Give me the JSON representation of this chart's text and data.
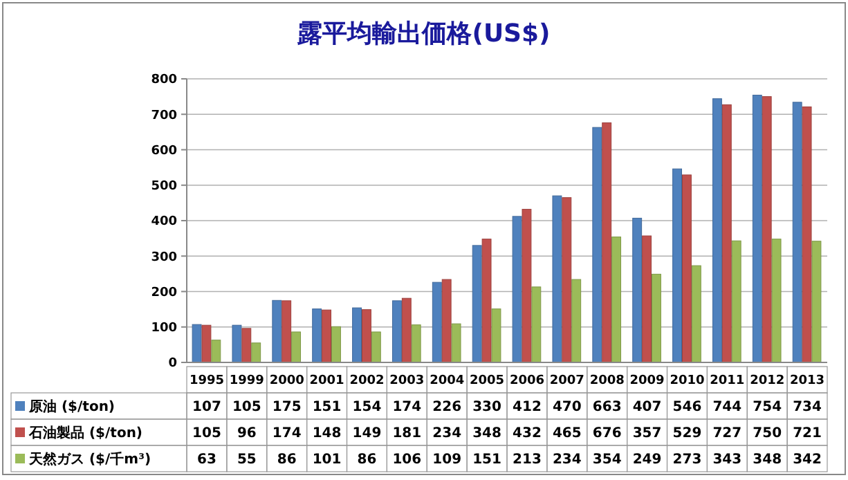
{
  "chart_data": {
    "type": "bar",
    "title": "露平均輸出価格(US$)",
    "categories": [
      "1995",
      "1999",
      "2000",
      "2001",
      "2002",
      "2003",
      "2004",
      "2005",
      "2006",
      "2007",
      "2008",
      "2009",
      "2010",
      "2011",
      "2012",
      "2013"
    ],
    "series": [
      {
        "name": "原油 ($/ton)",
        "color": "#4f81bd",
        "values": [
          107,
          105,
          175,
          151,
          154,
          174,
          226,
          330,
          412,
          470,
          663,
          407,
          546,
          744,
          754,
          734
        ]
      },
      {
        "name": "石油製品 ($/ton)",
        "color": "#c0504d",
        "values": [
          105,
          96,
          174,
          148,
          149,
          181,
          234,
          348,
          432,
          465,
          676,
          357,
          529,
          727,
          750,
          721
        ]
      },
      {
        "name": "天然ガス ($/千m³)",
        "color": "#9bbb59",
        "values": [
          63,
          55,
          86,
          101,
          86,
          106,
          109,
          151,
          213,
          234,
          354,
          249,
          273,
          343,
          348,
          342
        ]
      }
    ],
    "ylim": [
      0,
      800
    ],
    "yticks": [
      0,
      100,
      200,
      300,
      400,
      500,
      600,
      700,
      800
    ],
    "grid": "y",
    "legend": "bottom",
    "data_labels": true
  }
}
